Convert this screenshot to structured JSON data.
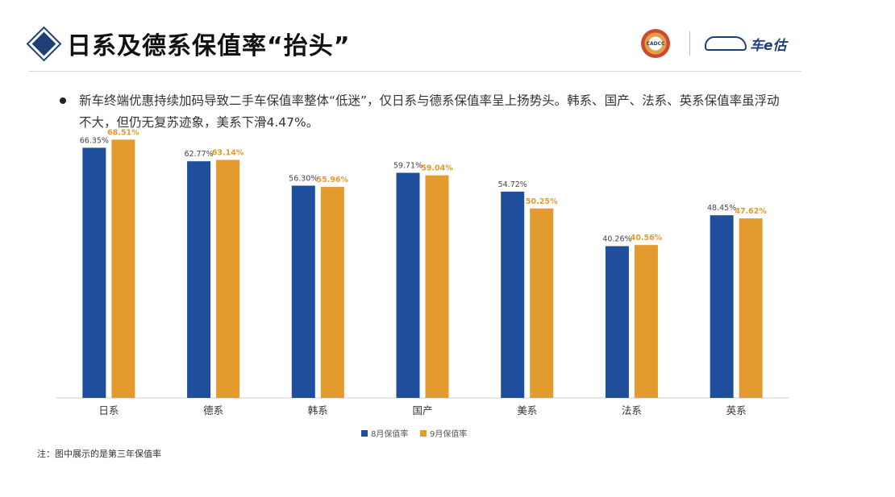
{
  "title": "日系及德系保值率“抬头”",
  "logos": {
    "seal_text": "CADCC",
    "brand_text": "车e估"
  },
  "bullet": "新车终端优惠持续加码导致二手车保值率整体“低迷”，仅日系与德系保值率呈上扬势头。韩系、国产、法系、英系保值率虽浮动不大，但仍无复苏迹象，美系下滑4.47%。",
  "footnote": "注：图中展示的是第三年保值率",
  "colors": {
    "aug": "#1f4e9c",
    "sep": "#e39b2d",
    "accent": "#1f3f7a"
  },
  "icons": {
    "title_marker": "diamond-icon",
    "brand_logo": "car-icon"
  },
  "chart_data": {
    "type": "bar",
    "categories": [
      "日系",
      "德系",
      "韩系",
      "国产",
      "美系",
      "法系",
      "英系"
    ],
    "series": [
      {
        "name": "8月保值率",
        "values": [
          66.35,
          62.77,
          56.3,
          59.71,
          54.72,
          40.26,
          48.45
        ],
        "labels": [
          "66.35%",
          "62.77%",
          "56.30%",
          "59.71%",
          "54.72%",
          "40.26%",
          "48.45%"
        ]
      },
      {
        "name": "9月保值率",
        "values": [
          68.51,
          63.14,
          55.96,
          59.04,
          50.25,
          40.56,
          47.62
        ],
        "labels": [
          "68.51%",
          "63.14%",
          "55.96%",
          "59.04%",
          "50.25%",
          "40.56%",
          "47.62%"
        ]
      }
    ],
    "ylim": [
      0,
      72
    ],
    "legend_position": "bottom-center",
    "grid": false
  }
}
